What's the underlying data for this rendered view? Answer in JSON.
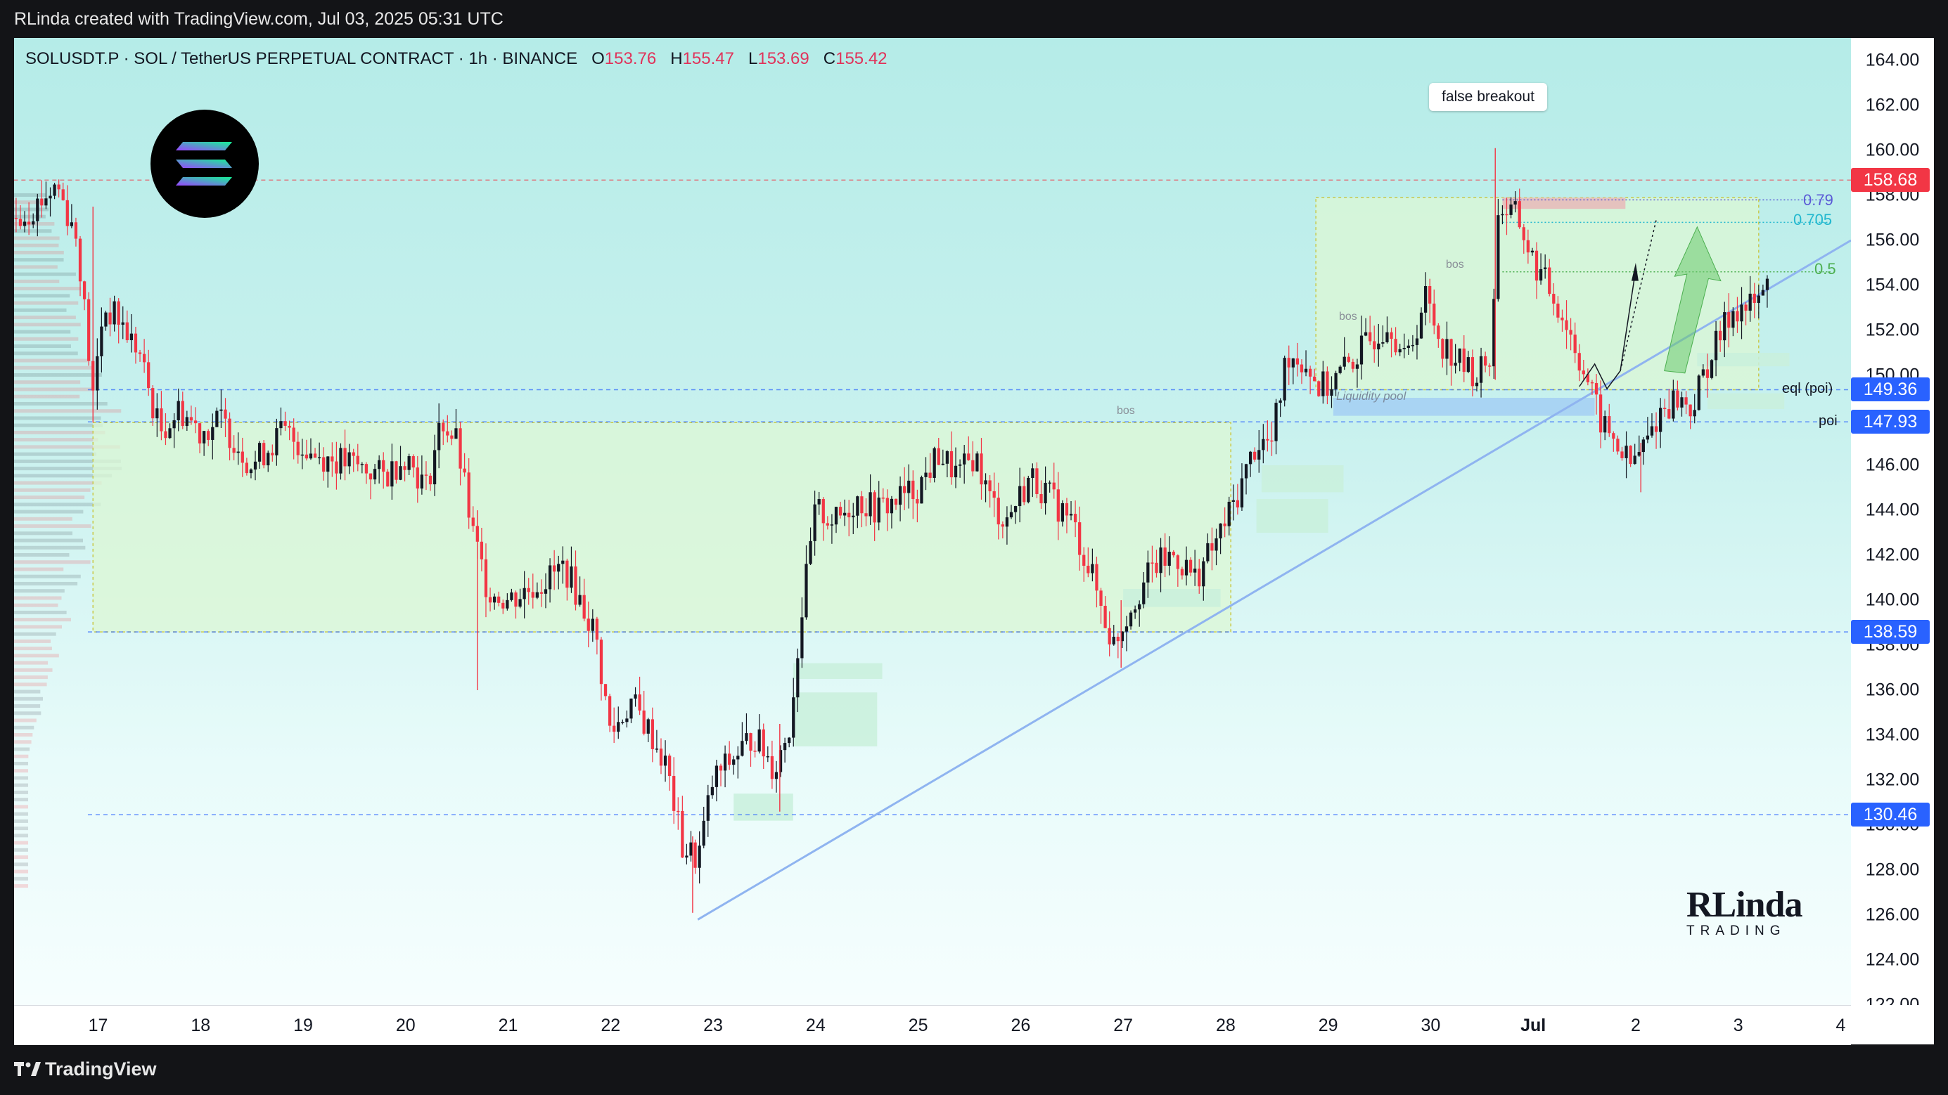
{
  "header": {
    "attribution": "RLinda created with TradingView.com, Jul 03, 2025 05:31 UTC"
  },
  "legend": {
    "symbol": "SOLUSDT.P · SOL / TetherUS PERPETUAL CONTRACT · 1h · BINANCE",
    "o_label": "O",
    "o": "153.76",
    "h_label": "H",
    "h": "155.47",
    "l_label": "L",
    "l": "153.69",
    "c_label": "C",
    "c": "155.42"
  },
  "footer": {
    "brand": "TradingView"
  },
  "watermark": {
    "line1": "RLinda",
    "line2": "TRADING"
  },
  "annotations": {
    "false_breakout": "false breakout",
    "bos": "bos",
    "liquidity_pool": "Liquidity pool",
    "eql_poi": "eql (poi)",
    "poi": "poi",
    "fib_079": "0.79",
    "fib_0705": "0.705",
    "fib_05": "0.5"
  },
  "price_badges": [
    {
      "value": "158.68",
      "color": "#f23645"
    },
    {
      "value": "149.36",
      "color": "#2962ff"
    },
    {
      "value": "147.93",
      "color": "#2962ff"
    },
    {
      "value": "138.59",
      "color": "#2962ff"
    },
    {
      "value": "130.46",
      "color": "#2962ff"
    }
  ],
  "colors": {
    "up": "#131722",
    "down": "#f23645",
    "trendline": "#8fb4f0",
    "zone_fill": "#dcf7d4",
    "zone_border": "#c9c94a"
  },
  "chart_data": {
    "type": "candlestick",
    "symbol": "SOLUSDT.P",
    "timeframe": "1h",
    "ylim": [
      122,
      165
    ],
    "y_ticks": [
      "164.00",
      "162.00",
      "160.00",
      "158.00",
      "156.00",
      "154.00",
      "152.00",
      "150.00",
      "148.00",
      "146.00",
      "144.00",
      "142.00",
      "140.00",
      "138.00",
      "136.00",
      "134.00",
      "132.00",
      "130.00",
      "128.00",
      "126.00",
      "124.00",
      "122.00"
    ],
    "x_ticks": [
      "17",
      "18",
      "19",
      "20",
      "21",
      "22",
      "23",
      "24",
      "25",
      "26",
      "27",
      "28",
      "29",
      "30",
      "Jul",
      "2",
      "3",
      "4"
    ],
    "x_days": [
      17,
      18,
      19,
      20,
      21,
      22,
      23,
      24,
      25,
      26,
      27,
      28,
      29,
      30,
      31,
      32,
      33,
      34
    ],
    "xlim": [
      16.18,
      34.1
    ],
    "ohlc_waypoints": [
      [
        16.2,
        157.0
      ],
      [
        16.4,
        157.6
      ],
      [
        16.6,
        158.5
      ],
      [
        16.8,
        156.0
      ],
      [
        16.95,
        149.0
      ],
      [
        17.05,
        153.0
      ],
      [
        17.2,
        152.5
      ],
      [
        17.4,
        151.0
      ],
      [
        17.6,
        147.5
      ],
      [
        17.8,
        148.5
      ],
      [
        18.0,
        147.5
      ],
      [
        18.2,
        148.0
      ],
      [
        18.5,
        146.0
      ],
      [
        18.8,
        147.5
      ],
      [
        19.1,
        146.5
      ],
      [
        19.5,
        146.0
      ],
      [
        19.8,
        145.5
      ],
      [
        20.0,
        146.5
      ],
      [
        20.2,
        145.0
      ],
      [
        20.35,
        148.0
      ],
      [
        20.5,
        147.0
      ],
      [
        20.65,
        143.0
      ],
      [
        20.8,
        140.5
      ],
      [
        21.0,
        140.0
      ],
      [
        21.2,
        140.5
      ],
      [
        21.4,
        141.0
      ],
      [
        21.55,
        141.5
      ],
      [
        21.7,
        140.0
      ],
      [
        21.85,
        138.5
      ],
      [
        22.0,
        134.0
      ],
      [
        22.2,
        135.5
      ],
      [
        22.4,
        134.0
      ],
      [
        22.55,
        132.5
      ],
      [
        22.7,
        129.0
      ],
      [
        22.85,
        128.5
      ],
      [
        23.0,
        132.0
      ],
      [
        23.2,
        133.0
      ],
      [
        23.4,
        134.0
      ],
      [
        23.6,
        132.5
      ],
      [
        23.75,
        134.5
      ],
      [
        23.85,
        139.0
      ],
      [
        24.0,
        144.0
      ],
      [
        24.2,
        143.5
      ],
      [
        24.4,
        144.5
      ],
      [
        24.6,
        144.0
      ],
      [
        24.8,
        144.5
      ],
      [
        25.0,
        145.0
      ],
      [
        25.2,
        146.5
      ],
      [
        25.4,
        145.5
      ],
      [
        25.55,
        146.5
      ],
      [
        25.7,
        144.5
      ],
      [
        25.85,
        143.5
      ],
      [
        26.1,
        145.5
      ],
      [
        26.3,
        144.5
      ],
      [
        26.5,
        143.5
      ],
      [
        26.7,
        141.0
      ],
      [
        26.9,
        138.0
      ],
      [
        27.1,
        140.0
      ],
      [
        27.3,
        141.5
      ],
      [
        27.5,
        142.0
      ],
      [
        27.7,
        141.0
      ],
      [
        27.9,
        142.5
      ],
      [
        28.1,
        144.5
      ],
      [
        28.3,
        147.0
      ],
      [
        28.45,
        147.0
      ],
      [
        28.6,
        151.0
      ],
      [
        28.8,
        150.5
      ],
      [
        28.9,
        149.5
      ],
      [
        29.0,
        149.5
      ],
      [
        29.2,
        150.5
      ],
      [
        29.4,
        151.5
      ],
      [
        29.6,
        152.5
      ],
      [
        29.75,
        150.5
      ],
      [
        29.95,
        153.5
      ],
      [
        30.1,
        151.5
      ],
      [
        30.3,
        150.5
      ],
      [
        30.45,
        150.0
      ],
      [
        30.6,
        151.0
      ],
      [
        30.65,
        157.5
      ],
      [
        30.85,
        157.0
      ],
      [
        31.0,
        155.0
      ],
      [
        31.2,
        153.5
      ],
      [
        31.35,
        152.0
      ],
      [
        31.55,
        149.5
      ],
      [
        31.65,
        148.0
      ],
      [
        31.8,
        147.0
      ],
      [
        31.95,
        146.0
      ],
      [
        32.1,
        147.0
      ],
      [
        32.25,
        148.5
      ],
      [
        32.4,
        149.0
      ],
      [
        32.55,
        148.5
      ],
      [
        32.7,
        150.5
      ],
      [
        32.8,
        151.5
      ],
      [
        32.95,
        153.0
      ],
      [
        33.1,
        153.0
      ],
      [
        33.25,
        153.5
      ],
      [
        33.3,
        155.4
      ]
    ],
    "annotated_levels": [
      158.68,
      149.36,
      147.93,
      138.59,
      130.46
    ],
    "fibonacci": [
      {
        "label": "0.79",
        "price": 157.8
      },
      {
        "label": "0.705",
        "price": 156.8
      },
      {
        "label": "0.5",
        "price": 154.6
      }
    ],
    "trendline": {
      "from": [
        22.85,
        125.8
      ],
      "to": [
        34.1,
        156.0
      ]
    },
    "zones": [
      {
        "from": [
          16.95,
          147.9
        ],
        "to": [
          28.05,
          138.59
        ]
      },
      {
        "from": [
          28.88,
          157.9
        ],
        "to": [
          33.2,
          149.36
        ]
      }
    ]
  }
}
